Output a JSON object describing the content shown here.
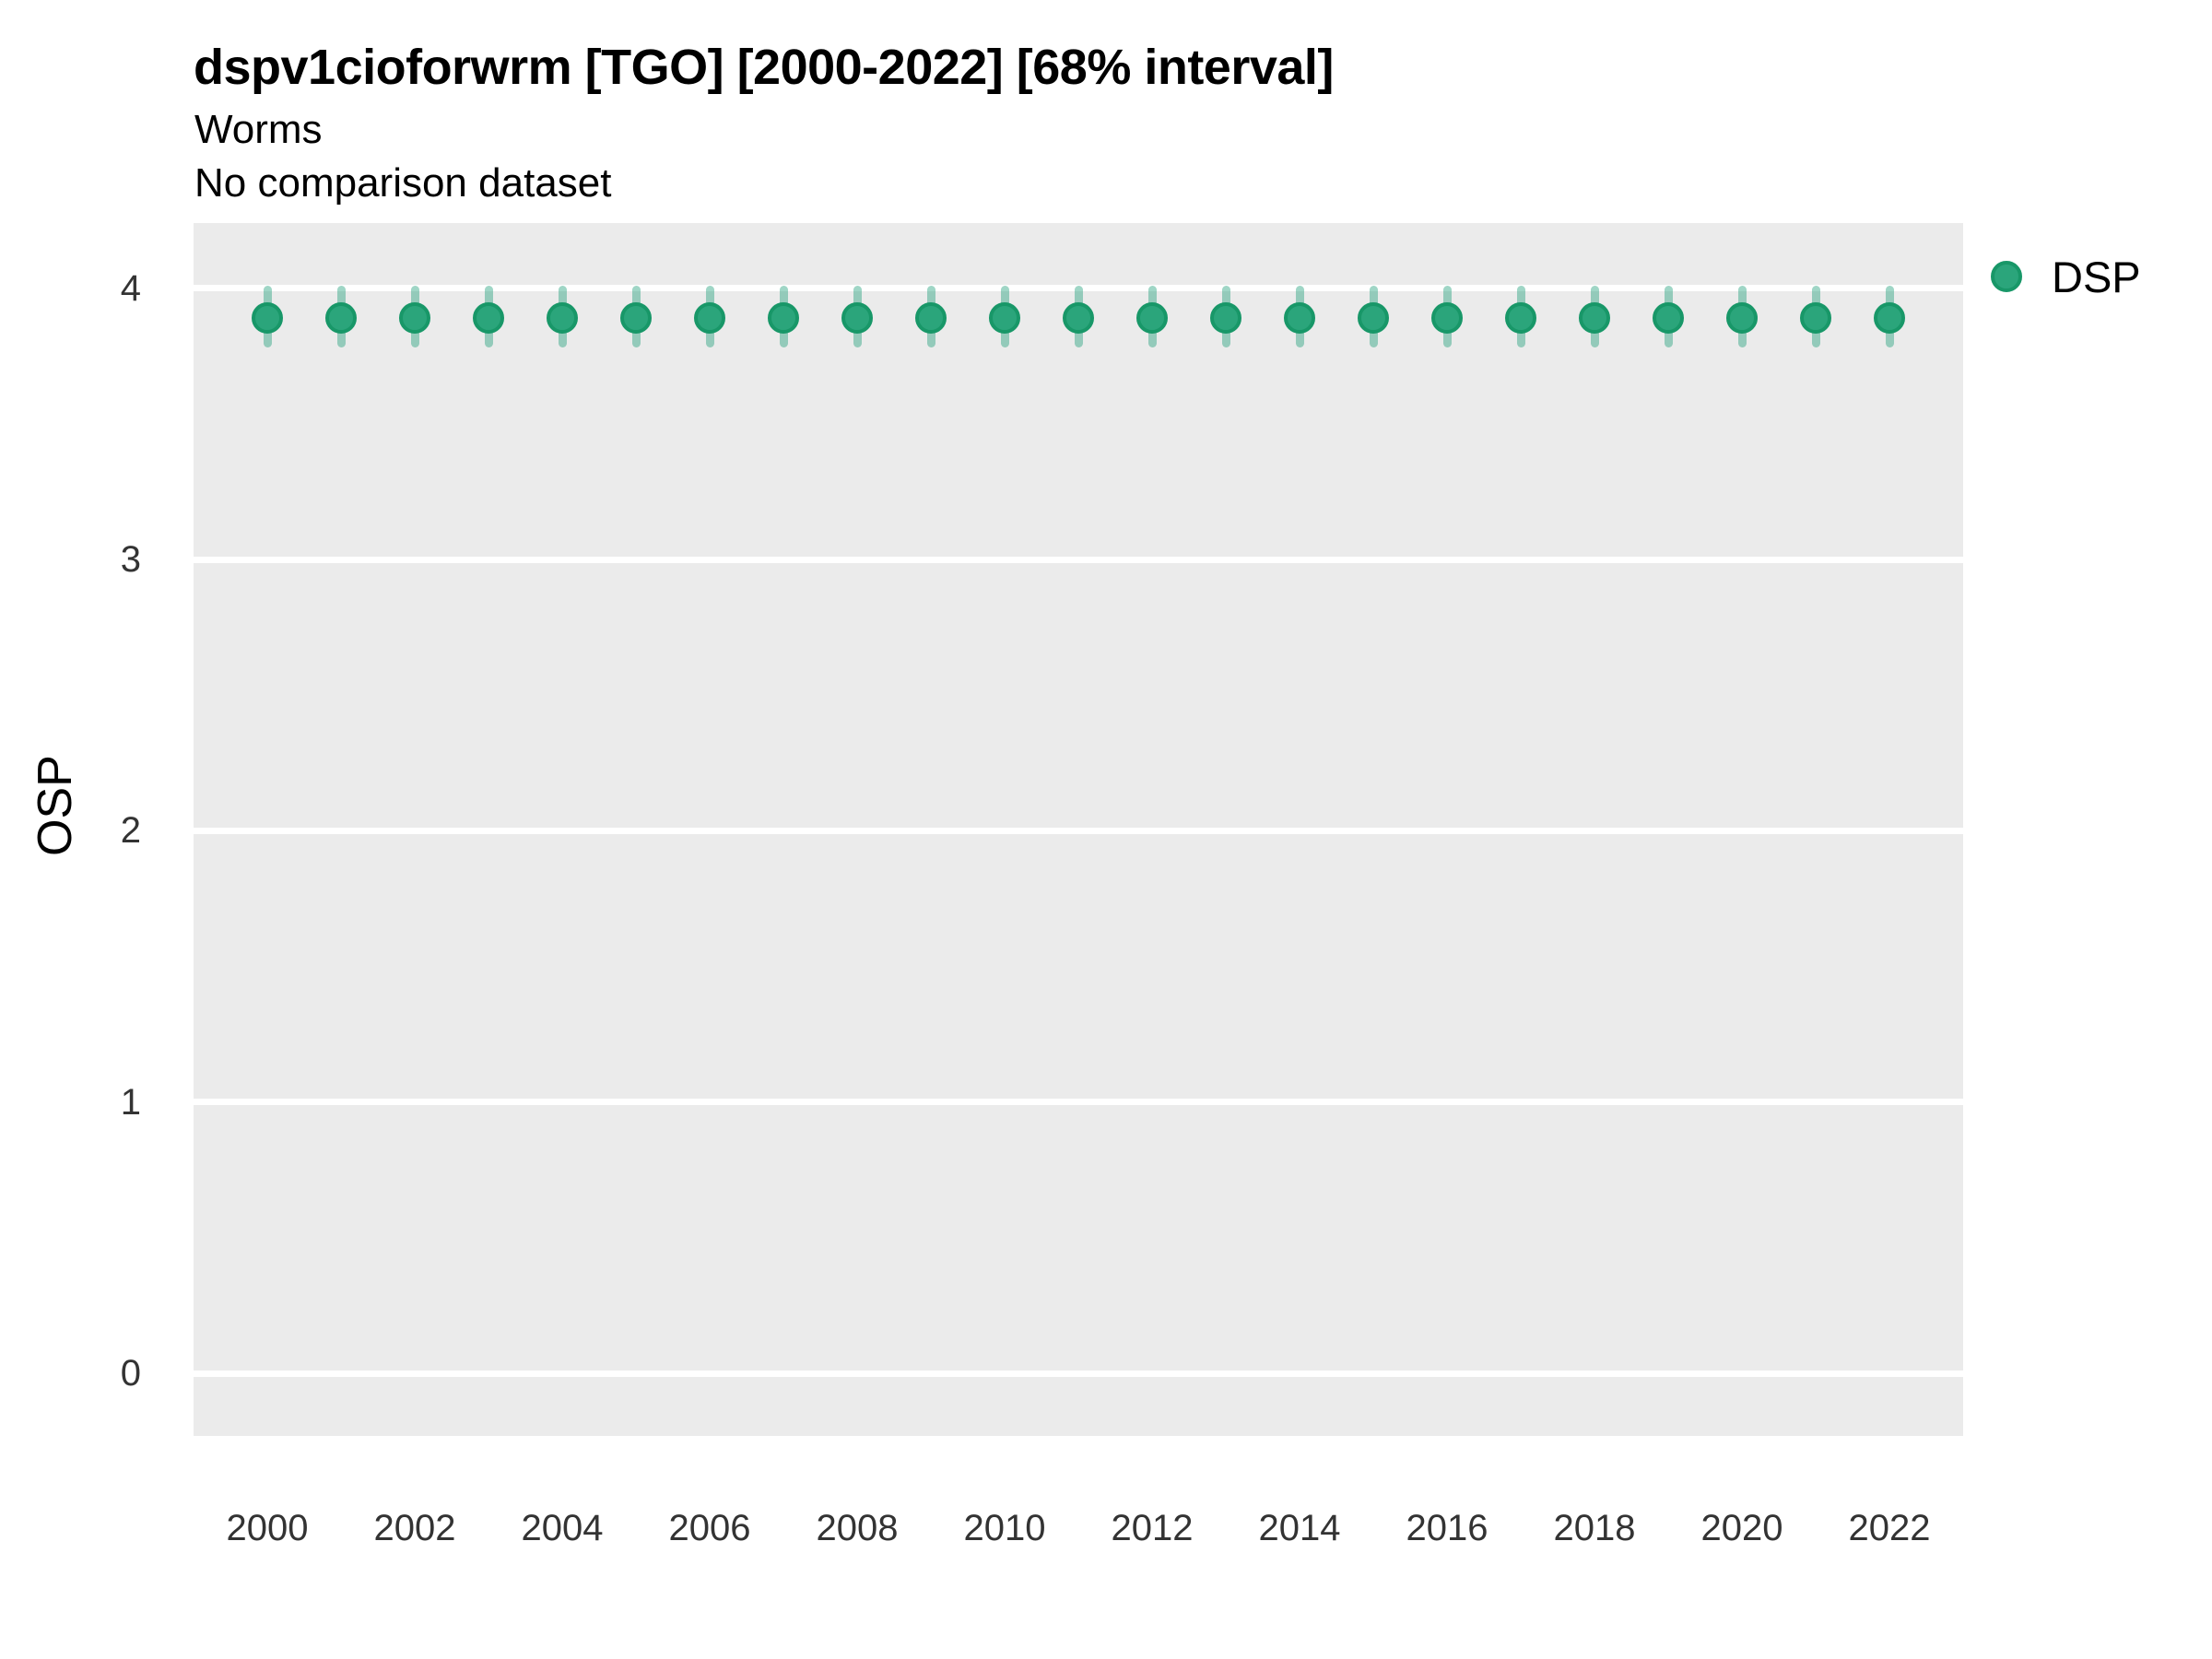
{
  "header": {
    "title": "dspv1cioforwrm [TGO] [2000-2022] [68% interval]",
    "subtitle_line1": "Worms",
    "subtitle_line2": "No comparison dataset"
  },
  "axes": {
    "y_title": "OSP",
    "x_title": ""
  },
  "legend": {
    "label": "DSP",
    "position": "right"
  },
  "colors": {
    "panel_bg": "#EBEBEB",
    "gridline": "#FFFFFF",
    "point_fill": "#2BA57B",
    "point_stroke": "#189768",
    "interval_bar": "rgba(27,158,119,0.42)",
    "tick_text": "#333333",
    "title_text": "#000000"
  },
  "chart_data": {
    "type": "scatter",
    "subtype": "pointrange-interval",
    "title": "dspv1cioforwrm [TGO] [2000-2022] [68% interval]",
    "subtitle": [
      "Worms",
      "No comparison dataset"
    ],
    "xlabel": "",
    "ylabel": "OSP",
    "interval_level": "68%",
    "legend_position": "right",
    "grid": "horizontal-major-only",
    "xlim": [
      1999,
      2023
    ],
    "ylim": [
      -0.23,
      4.24
    ],
    "yticks": [
      0,
      1,
      2,
      3,
      4
    ],
    "xticks": [
      2000,
      2002,
      2004,
      2006,
      2008,
      2010,
      2012,
      2014,
      2016,
      2018,
      2020,
      2022
    ],
    "series": [
      {
        "name": "DSP",
        "x": [
          2000,
          2001,
          2002,
          2003,
          2004,
          2005,
          2006,
          2007,
          2008,
          2009,
          2010,
          2011,
          2012,
          2013,
          2014,
          2015,
          2016,
          2017,
          2018,
          2019,
          2020,
          2021,
          2022
        ],
        "y": [
          3.89,
          3.89,
          3.89,
          3.89,
          3.89,
          3.89,
          3.89,
          3.89,
          3.89,
          3.89,
          3.89,
          3.89,
          3.89,
          3.89,
          3.89,
          3.89,
          3.89,
          3.89,
          3.89,
          3.89,
          3.89,
          3.89,
          3.89
        ],
        "lower": [
          3.78,
          3.78,
          3.78,
          3.78,
          3.78,
          3.78,
          3.78,
          3.78,
          3.78,
          3.78,
          3.78,
          3.78,
          3.78,
          3.78,
          3.78,
          3.78,
          3.78,
          3.78,
          3.78,
          3.78,
          3.78,
          3.78,
          3.78
        ],
        "upper": [
          4.01,
          4.01,
          4.01,
          4.01,
          4.01,
          4.01,
          4.01,
          4.01,
          4.01,
          4.01,
          4.01,
          4.01,
          4.01,
          4.01,
          4.01,
          4.01,
          4.01,
          4.01,
          4.01,
          4.01,
          4.01,
          4.01,
          4.01
        ]
      }
    ]
  }
}
